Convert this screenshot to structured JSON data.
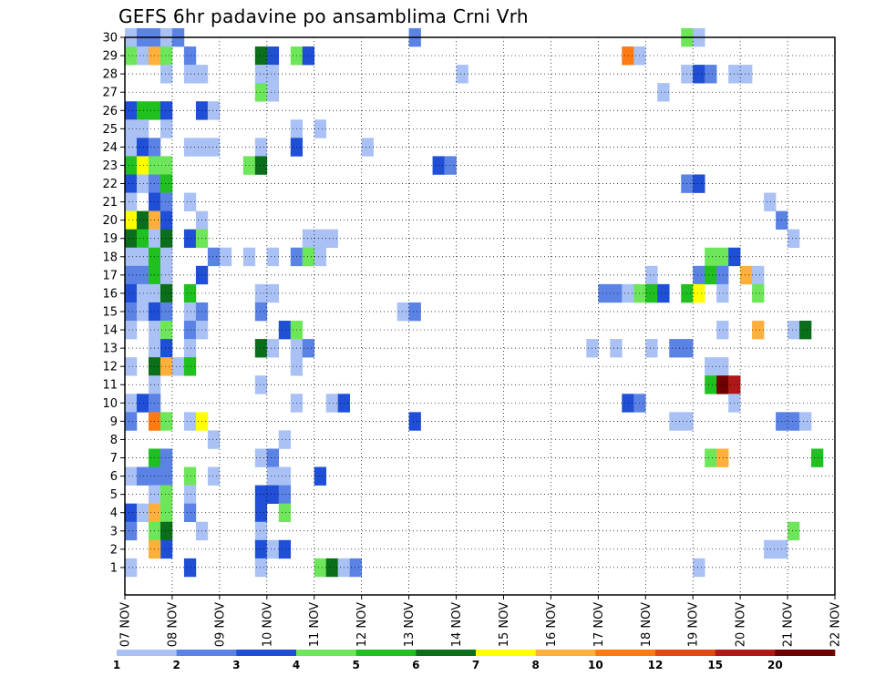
{
  "chart_data": {
    "type": "heatmap",
    "title": "GEFS 6hr padavine po ansamblima Crni Vrh",
    "xlabel": "",
    "ylabel": "",
    "x_tick_labels": [
      "07 NOV",
      "08 NOV",
      "09 NOV",
      "10 NOV",
      "11 NOV",
      "12 NOV",
      "13 NOV",
      "14 NOV",
      "15 NOV",
      "16 NOV",
      "17 NOV",
      "18 NOV",
      "19 NOV",
      "20 NOV",
      "21 NOV",
      "22 NOV"
    ],
    "y_tick_labels": [
      "1",
      "2",
      "3",
      "4",
      "5",
      "6",
      "7",
      "8",
      "9",
      "10",
      "11",
      "12",
      "13",
      "14",
      "15",
      "16",
      "17",
      "18",
      "19",
      "20",
      "21",
      "22",
      "23",
      "24",
      "25",
      "26",
      "27",
      "28",
      "29",
      "30"
    ],
    "x_range_days": [
      0,
      15
    ],
    "y_range_members": [
      0,
      30
    ],
    "steps_per_day": 4,
    "colorbar": {
      "labels": [
        "1",
        "2",
        "3",
        "4",
        "5",
        "6",
        "7",
        "8",
        "10",
        "12",
        "15",
        "20"
      ],
      "colors": [
        "#a9c1f4",
        "#5b83e6",
        "#1f4fd6",
        "#6ee65a",
        "#1fc01f",
        "#0b6e1a",
        "#ffff00",
        "#ffb03b",
        "#ff7a10",
        "#e04a10",
        "#b01818",
        "#6e0000"
      ]
    },
    "cells": [
      [
        0,
        30,
        1
      ],
      [
        1,
        30,
        2
      ],
      [
        2,
        30,
        2
      ],
      [
        3,
        30,
        1
      ],
      [
        4,
        30,
        2
      ],
      [
        24,
        30,
        2
      ],
      [
        47,
        30,
        4
      ],
      [
        48,
        30,
        1
      ],
      [
        0,
        29,
        4
      ],
      [
        1,
        29,
        1
      ],
      [
        2,
        29,
        8
      ],
      [
        3,
        29,
        4
      ],
      [
        5,
        29,
        2
      ],
      [
        11,
        29,
        6
      ],
      [
        12,
        29,
        3
      ],
      [
        14,
        29,
        4
      ],
      [
        15,
        29,
        3
      ],
      [
        42,
        29,
        9
      ],
      [
        43,
        29,
        1
      ],
      [
        3,
        28,
        1
      ],
      [
        5,
        28,
        1
      ],
      [
        6,
        28,
        1
      ],
      [
        11,
        28,
        1
      ],
      [
        12,
        28,
        1
      ],
      [
        28,
        28,
        1
      ],
      [
        47,
        28,
        1
      ],
      [
        48,
        28,
        3
      ],
      [
        49,
        28,
        2
      ],
      [
        51,
        28,
        1
      ],
      [
        52,
        28,
        1
      ],
      [
        11,
        27,
        4
      ],
      [
        12,
        27,
        1
      ],
      [
        45,
        27,
        1
      ],
      [
        0,
        26,
        3
      ],
      [
        1,
        26,
        5
      ],
      [
        2,
        26,
        5
      ],
      [
        3,
        26,
        3
      ],
      [
        6,
        26,
        3
      ],
      [
        7,
        26,
        1
      ],
      [
        0,
        25,
        1
      ],
      [
        1,
        25,
        1
      ],
      [
        3,
        25,
        1
      ],
      [
        14,
        25,
        1
      ],
      [
        16,
        25,
        1
      ],
      [
        0,
        24,
        1
      ],
      [
        1,
        24,
        3
      ],
      [
        2,
        24,
        2
      ],
      [
        5,
        24,
        1
      ],
      [
        6,
        24,
        1
      ],
      [
        7,
        24,
        1
      ],
      [
        11,
        24,
        1
      ],
      [
        14,
        24,
        3
      ],
      [
        20,
        24,
        1
      ],
      [
        0,
        23,
        5
      ],
      [
        1,
        23,
        7
      ],
      [
        2,
        23,
        4
      ],
      [
        3,
        23,
        4
      ],
      [
        10,
        23,
        4
      ],
      [
        11,
        23,
        6
      ],
      [
        26,
        23,
        3
      ],
      [
        27,
        23,
        2
      ],
      [
        0,
        22,
        3
      ],
      [
        1,
        22,
        1
      ],
      [
        2,
        22,
        2
      ],
      [
        3,
        22,
        5
      ],
      [
        47,
        22,
        2
      ],
      [
        48,
        22,
        3
      ],
      [
        0,
        21,
        1
      ],
      [
        2,
        21,
        3
      ],
      [
        3,
        21,
        2
      ],
      [
        5,
        21,
        1
      ],
      [
        54,
        21,
        1
      ],
      [
        0,
        20,
        7
      ],
      [
        1,
        20,
        6
      ],
      [
        2,
        20,
        8
      ],
      [
        3,
        20,
        3
      ],
      [
        6,
        20,
        1
      ],
      [
        55,
        20,
        2
      ],
      [
        0,
        19,
        6
      ],
      [
        1,
        19,
        5
      ],
      [
        2,
        19,
        1
      ],
      [
        3,
        19,
        6
      ],
      [
        5,
        19,
        3
      ],
      [
        6,
        19,
        4
      ],
      [
        15,
        19,
        1
      ],
      [
        16,
        19,
        1
      ],
      [
        17,
        19,
        1
      ],
      [
        56,
        19,
        1
      ],
      [
        0,
        18,
        1
      ],
      [
        1,
        18,
        1
      ],
      [
        2,
        18,
        5
      ],
      [
        3,
        18,
        1
      ],
      [
        7,
        18,
        2
      ],
      [
        8,
        18,
        1
      ],
      [
        10,
        18,
        1
      ],
      [
        12,
        18,
        1
      ],
      [
        14,
        18,
        2
      ],
      [
        15,
        18,
        4
      ],
      [
        16,
        18,
        1
      ],
      [
        49,
        18,
        4
      ],
      [
        50,
        18,
        4
      ],
      [
        51,
        18,
        3
      ],
      [
        0,
        17,
        2
      ],
      [
        1,
        17,
        2
      ],
      [
        2,
        17,
        5
      ],
      [
        3,
        17,
        1
      ],
      [
        6,
        17,
        3
      ],
      [
        44,
        17,
        1
      ],
      [
        48,
        17,
        2
      ],
      [
        49,
        17,
        5
      ],
      [
        50,
        17,
        2
      ],
      [
        52,
        17,
        8
      ],
      [
        53,
        17,
        1
      ],
      [
        0,
        16,
        3
      ],
      [
        1,
        16,
        1
      ],
      [
        2,
        16,
        1
      ],
      [
        3,
        16,
        6
      ],
      [
        5,
        16,
        5
      ],
      [
        11,
        16,
        1
      ],
      [
        12,
        16,
        1
      ],
      [
        40,
        16,
        2
      ],
      [
        41,
        16,
        2
      ],
      [
        42,
        16,
        1
      ],
      [
        43,
        16,
        4
      ],
      [
        44,
        16,
        5
      ],
      [
        45,
        16,
        3
      ],
      [
        47,
        16,
        5
      ],
      [
        48,
        16,
        7
      ],
      [
        50,
        16,
        1
      ],
      [
        53,
        16,
        4
      ],
      [
        0,
        15,
        2
      ],
      [
        1,
        15,
        1
      ],
      [
        2,
        15,
        3
      ],
      [
        3,
        15,
        2
      ],
      [
        5,
        15,
        1
      ],
      [
        6,
        15,
        2
      ],
      [
        11,
        15,
        2
      ],
      [
        23,
        15,
        1
      ],
      [
        24,
        15,
        2
      ],
      [
        0,
        14,
        1
      ],
      [
        2,
        14,
        1
      ],
      [
        3,
        14,
        4
      ],
      [
        5,
        14,
        2
      ],
      [
        6,
        14,
        1
      ],
      [
        13,
        14,
        3
      ],
      [
        14,
        14,
        4
      ],
      [
        50,
        14,
        1
      ],
      [
        53,
        14,
        8
      ],
      [
        56,
        14,
        1
      ],
      [
        57,
        14,
        6
      ],
      [
        2,
        13,
        1
      ],
      [
        3,
        13,
        3
      ],
      [
        5,
        13,
        1
      ],
      [
        11,
        13,
        6
      ],
      [
        12,
        13,
        1
      ],
      [
        14,
        13,
        1
      ],
      [
        15,
        13,
        2
      ],
      [
        39,
        13,
        1
      ],
      [
        41,
        13,
        1
      ],
      [
        44,
        13,
        1
      ],
      [
        46,
        13,
        2
      ],
      [
        47,
        13,
        2
      ],
      [
        0,
        12,
        1
      ],
      [
        2,
        12,
        6
      ],
      [
        3,
        12,
        8
      ],
      [
        4,
        12,
        1
      ],
      [
        5,
        12,
        5
      ],
      [
        14,
        12,
        1
      ],
      [
        49,
        12,
        1
      ],
      [
        50,
        12,
        1
      ],
      [
        2,
        11,
        1
      ],
      [
        11,
        11,
        1
      ],
      [
        49,
        11,
        5
      ],
      [
        50,
        11,
        12
      ],
      [
        51,
        11,
        11
      ],
      [
        0,
        10,
        1
      ],
      [
        1,
        10,
        3
      ],
      [
        2,
        10,
        2
      ],
      [
        14,
        10,
        1
      ],
      [
        17,
        10,
        1
      ],
      [
        18,
        10,
        3
      ],
      [
        42,
        10,
        3
      ],
      [
        43,
        10,
        2
      ],
      [
        51,
        10,
        1
      ],
      [
        0,
        9,
        2
      ],
      [
        2,
        9,
        9
      ],
      [
        3,
        9,
        4
      ],
      [
        5,
        9,
        1
      ],
      [
        6,
        9,
        7
      ],
      [
        24,
        9,
        3
      ],
      [
        46,
        9,
        1
      ],
      [
        47,
        9,
        1
      ],
      [
        55,
        9,
        2
      ],
      [
        56,
        9,
        2
      ],
      [
        57,
        9,
        1
      ],
      [
        7,
        8,
        1
      ],
      [
        13,
        8,
        1
      ],
      [
        2,
        7,
        5
      ],
      [
        3,
        7,
        2
      ],
      [
        11,
        7,
        1
      ],
      [
        12,
        7,
        2
      ],
      [
        49,
        7,
        4
      ],
      [
        50,
        7,
        8
      ],
      [
        58,
        7,
        5
      ],
      [
        0,
        6,
        1
      ],
      [
        1,
        6,
        2
      ],
      [
        2,
        6,
        2
      ],
      [
        3,
        6,
        2
      ],
      [
        5,
        6,
        4
      ],
      [
        7,
        6,
        1
      ],
      [
        12,
        6,
        1
      ],
      [
        13,
        6,
        1
      ],
      [
        16,
        6,
        3
      ],
      [
        2,
        5,
        1
      ],
      [
        3,
        5,
        4
      ],
      [
        5,
        5,
        1
      ],
      [
        11,
        5,
        3
      ],
      [
        12,
        5,
        3
      ],
      [
        13,
        5,
        2
      ],
      [
        0,
        4,
        3
      ],
      [
        1,
        4,
        1
      ],
      [
        2,
        4,
        8
      ],
      [
        3,
        4,
        4
      ],
      [
        5,
        4,
        2
      ],
      [
        11,
        4,
        3
      ],
      [
        13,
        4,
        4
      ],
      [
        0,
        3,
        2
      ],
      [
        2,
        3,
        4
      ],
      [
        3,
        3,
        6
      ],
      [
        6,
        3,
        1
      ],
      [
        11,
        3,
        1
      ],
      [
        56,
        3,
        4
      ],
      [
        3,
        2,
        3
      ],
      [
        11,
        2,
        3
      ],
      [
        12,
        2,
        1
      ],
      [
        13,
        2,
        3
      ],
      [
        2,
        2,
        8
      ],
      [
        54,
        2,
        1
      ],
      [
        55,
        2,
        1
      ],
      [
        0,
        1,
        1
      ],
      [
        5,
        1,
        3
      ],
      [
        11,
        1,
        1
      ],
      [
        16,
        1,
        4
      ],
      [
        17,
        1,
        6
      ],
      [
        18,
        1,
        1
      ],
      [
        19,
        1,
        2
      ],
      [
        48,
        1,
        1
      ]
    ]
  }
}
